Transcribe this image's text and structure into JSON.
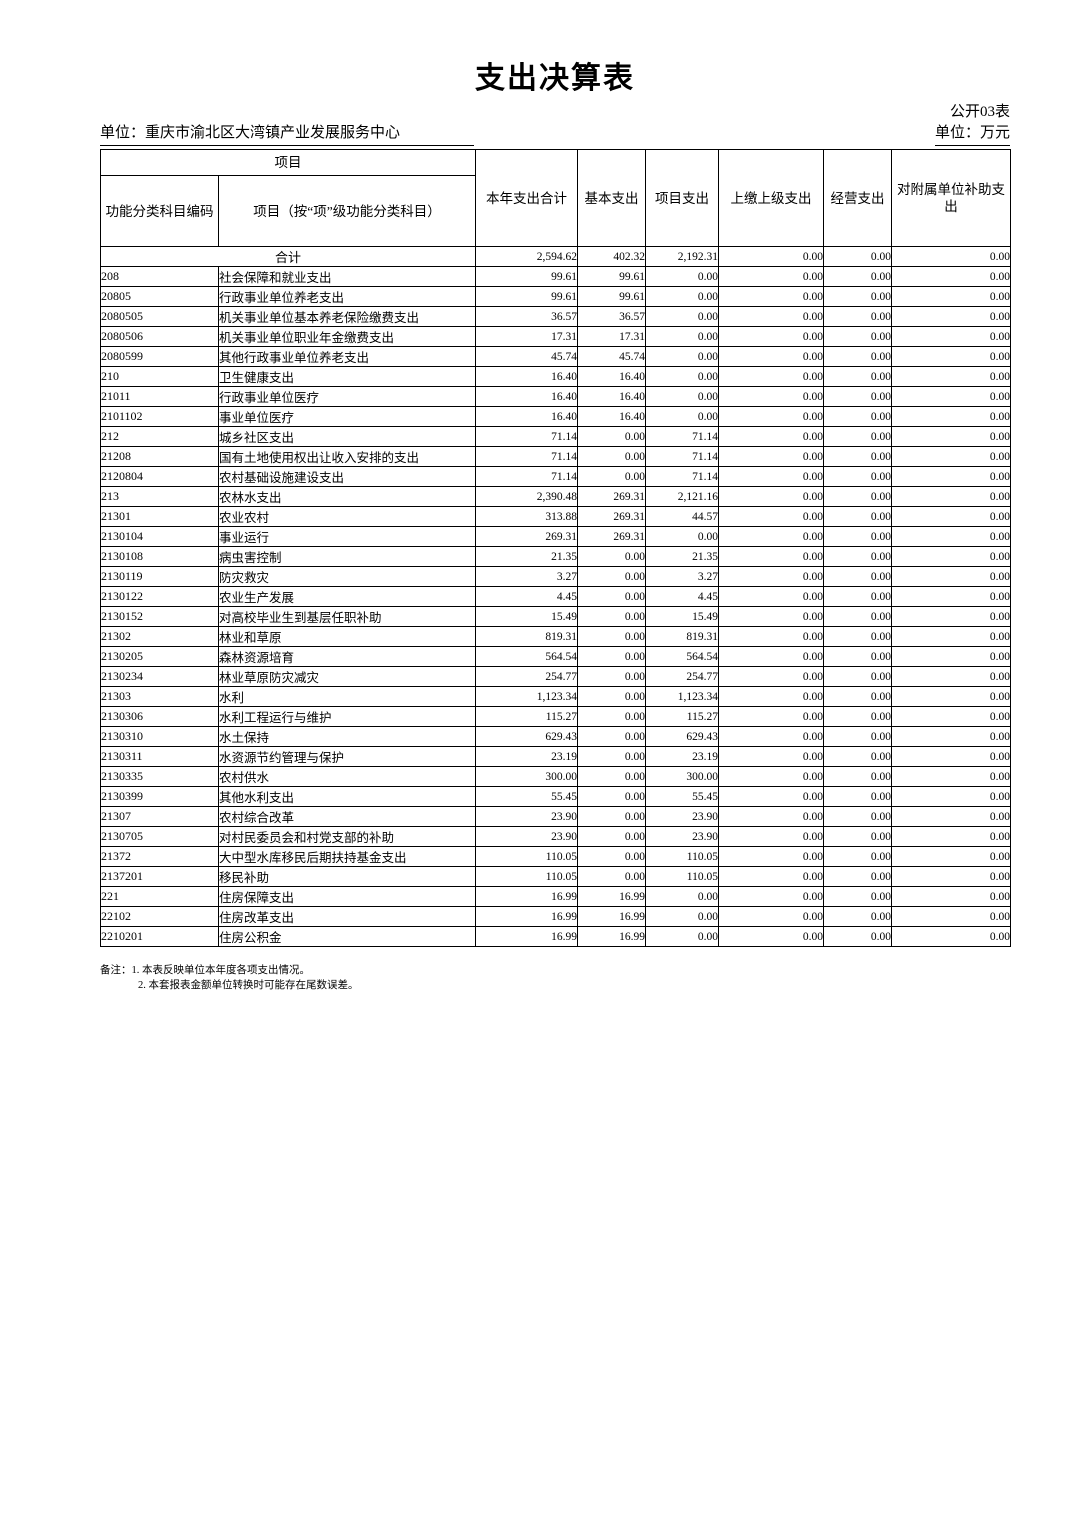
{
  "page": {
    "title": "支出决算表",
    "form_code": "公开03表",
    "unit_label": "单位：重庆市渝北区大湾镇产业发展服务中心",
    "unit_of_measure": "单位：万元",
    "notes": [
      "备注：1. 本表反映单位本年度各项支出情况。",
      "2. 本套报表金额单位转换时可能存在尾数误差。"
    ]
  },
  "table": {
    "group_header": "项目",
    "columns": [
      "功能分类科目编码",
      "项目（按“项”级功能分类科目）",
      "本年支出合计",
      "基本支出",
      "项目支出",
      "上缴上级支出",
      "经营支出",
      "对附属单位补助支出"
    ],
    "total_row": {
      "label": "合计",
      "values": [
        "2,594.62",
        "402.32",
        "2,192.31",
        "0.00",
        "0.00",
        "0.00"
      ]
    },
    "rows": [
      {
        "code": "208",
        "item": "社会保障和就业支出",
        "values": [
          "99.61",
          "99.61",
          "0.00",
          "0.00",
          "0.00",
          "0.00"
        ]
      },
      {
        "code": "20805",
        "item": "行政事业单位养老支出",
        "values": [
          "99.61",
          "99.61",
          "0.00",
          "0.00",
          "0.00",
          "0.00"
        ]
      },
      {
        "code": "2080505",
        "item": "机关事业单位基本养老保险缴费支出",
        "values": [
          "36.57",
          "36.57",
          "0.00",
          "0.00",
          "0.00",
          "0.00"
        ]
      },
      {
        "code": "2080506",
        "item": "机关事业单位职业年金缴费支出",
        "values": [
          "17.31",
          "17.31",
          "0.00",
          "0.00",
          "0.00",
          "0.00"
        ]
      },
      {
        "code": "2080599",
        "item": "其他行政事业单位养老支出",
        "values": [
          "45.74",
          "45.74",
          "0.00",
          "0.00",
          "0.00",
          "0.00"
        ]
      },
      {
        "code": "210",
        "item": "卫生健康支出",
        "values": [
          "16.40",
          "16.40",
          "0.00",
          "0.00",
          "0.00",
          "0.00"
        ]
      },
      {
        "code": "21011",
        "item": "行政事业单位医疗",
        "values": [
          "16.40",
          "16.40",
          "0.00",
          "0.00",
          "0.00",
          "0.00"
        ]
      },
      {
        "code": "2101102",
        "item": "事业单位医疗",
        "values": [
          "16.40",
          "16.40",
          "0.00",
          "0.00",
          "0.00",
          "0.00"
        ]
      },
      {
        "code": "212",
        "item": "城乡社区支出",
        "values": [
          "71.14",
          "0.00",
          "71.14",
          "0.00",
          "0.00",
          "0.00"
        ]
      },
      {
        "code": "21208",
        "item": "国有土地使用权出让收入安排的支出",
        "values": [
          "71.14",
          "0.00",
          "71.14",
          "0.00",
          "0.00",
          "0.00"
        ]
      },
      {
        "code": "2120804",
        "item": "农村基础设施建设支出",
        "values": [
          "71.14",
          "0.00",
          "71.14",
          "0.00",
          "0.00",
          "0.00"
        ]
      },
      {
        "code": "213",
        "item": "农林水支出",
        "values": [
          "2,390.48",
          "269.31",
          "2,121.16",
          "0.00",
          "0.00",
          "0.00"
        ]
      },
      {
        "code": "21301",
        "item": "农业农村",
        "values": [
          "313.88",
          "269.31",
          "44.57",
          "0.00",
          "0.00",
          "0.00"
        ]
      },
      {
        "code": "2130104",
        "item": "事业运行",
        "values": [
          "269.31",
          "269.31",
          "0.00",
          "0.00",
          "0.00",
          "0.00"
        ]
      },
      {
        "code": "2130108",
        "item": "病虫害控制",
        "values": [
          "21.35",
          "0.00",
          "21.35",
          "0.00",
          "0.00",
          "0.00"
        ]
      },
      {
        "code": "2130119",
        "item": "防灾救灾",
        "values": [
          "3.27",
          "0.00",
          "3.27",
          "0.00",
          "0.00",
          "0.00"
        ]
      },
      {
        "code": "2130122",
        "item": "农业生产发展",
        "values": [
          "4.45",
          "0.00",
          "4.45",
          "0.00",
          "0.00",
          "0.00"
        ]
      },
      {
        "code": "2130152",
        "item": "对高校毕业生到基层任职补助",
        "values": [
          "15.49",
          "0.00",
          "15.49",
          "0.00",
          "0.00",
          "0.00"
        ]
      },
      {
        "code": "21302",
        "item": "林业和草原",
        "values": [
          "819.31",
          "0.00",
          "819.31",
          "0.00",
          "0.00",
          "0.00"
        ]
      },
      {
        "code": "2130205",
        "item": "森林资源培育",
        "values": [
          "564.54",
          "0.00",
          "564.54",
          "0.00",
          "0.00",
          "0.00"
        ]
      },
      {
        "code": "2130234",
        "item": "林业草原防灾减灾",
        "values": [
          "254.77",
          "0.00",
          "254.77",
          "0.00",
          "0.00",
          "0.00"
        ]
      },
      {
        "code": "21303",
        "item": "水利",
        "values": [
          "1,123.34",
          "0.00",
          "1,123.34",
          "0.00",
          "0.00",
          "0.00"
        ]
      },
      {
        "code": "2130306",
        "item": "水利工程运行与维护",
        "values": [
          "115.27",
          "0.00",
          "115.27",
          "0.00",
          "0.00",
          "0.00"
        ]
      },
      {
        "code": "2130310",
        "item": "水土保持",
        "values": [
          "629.43",
          "0.00",
          "629.43",
          "0.00",
          "0.00",
          "0.00"
        ]
      },
      {
        "code": "2130311",
        "item": "水资源节约管理与保护",
        "values": [
          "23.19",
          "0.00",
          "23.19",
          "0.00",
          "0.00",
          "0.00"
        ]
      },
      {
        "code": "2130335",
        "item": "农村供水",
        "values": [
          "300.00",
          "0.00",
          "300.00",
          "0.00",
          "0.00",
          "0.00"
        ]
      },
      {
        "code": "2130399",
        "item": "其他水利支出",
        "values": [
          "55.45",
          "0.00",
          "55.45",
          "0.00",
          "0.00",
          "0.00"
        ]
      },
      {
        "code": "21307",
        "item": "农村综合改革",
        "values": [
          "23.90",
          "0.00",
          "23.90",
          "0.00",
          "0.00",
          "0.00"
        ]
      },
      {
        "code": "2130705",
        "item": "对村民委员会和村党支部的补助",
        "values": [
          "23.90",
          "0.00",
          "23.90",
          "0.00",
          "0.00",
          "0.00"
        ]
      },
      {
        "code": "21372",
        "item": "大中型水库移民后期扶持基金支出",
        "values": [
          "110.05",
          "0.00",
          "110.05",
          "0.00",
          "0.00",
          "0.00"
        ]
      },
      {
        "code": "2137201",
        "item": "移民补助",
        "values": [
          "110.05",
          "0.00",
          "110.05",
          "0.00",
          "0.00",
          "0.00"
        ]
      },
      {
        "code": "221",
        "item": "住房保障支出",
        "values": [
          "16.99",
          "16.99",
          "0.00",
          "0.00",
          "0.00",
          "0.00"
        ]
      },
      {
        "code": "22102",
        "item": "住房改革支出",
        "values": [
          "16.99",
          "16.99",
          "0.00",
          "0.00",
          "0.00",
          "0.00"
        ]
      },
      {
        "code": "2210201",
        "item": "住房公积金",
        "values": [
          "16.99",
          "16.99",
          "0.00",
          "0.00",
          "0.00",
          "0.00"
        ]
      }
    ]
  }
}
